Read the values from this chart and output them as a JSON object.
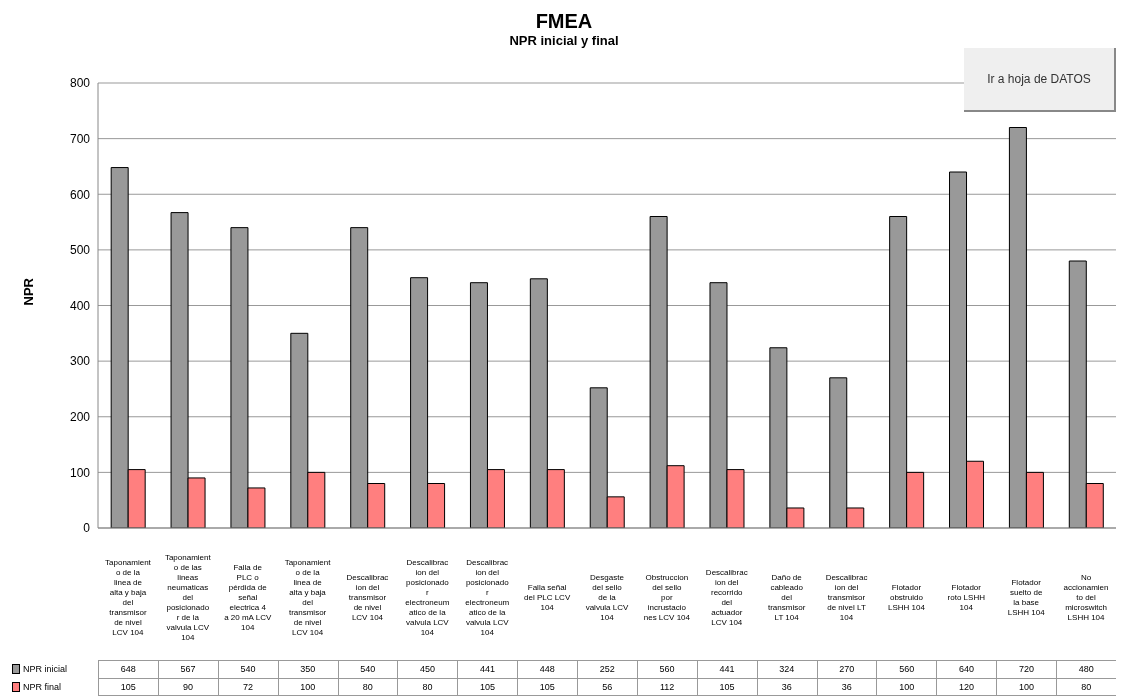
{
  "chart_data": {
    "type": "bar",
    "title": "FMEA",
    "subtitle": "NPR inicial y final",
    "ylabel": "NPR",
    "categories": [
      "Taponamiento de la linea de alta y baja del transmisor de nivel LCV 104",
      "Taponamiento de las lineas neumaticas del posicionador de la valvula LCV 104",
      "Falla de PLC o pérdida de señal electrica 4 a 20 mA LCV 104",
      "Taponamiento de la linea de alta y baja del transmisor de nivel LCV 104",
      "Descalibracion del transmisor de nivel LCV 104",
      "Descalibracion del posicionador electroneumatico de la valvula LCV 104",
      "Descalibracion del posicionador electroneumatico de la valvula LCV 104",
      "Falla señal del PLC LCV 104",
      "Desgaste del sello de la valvula LCV 104",
      "Obstruccion del sello por incrustaciones LCV 104",
      "Descalibracion del recorrido del actuador LCV 104",
      "Daño de cableado del transmisor LT 104",
      "Descalibracion del transmisor de nivel LT 104",
      "Flotador obstruido LSHH 104",
      "Flotador roto LSHH 104",
      "Flotador suelto de la base LSHH 104",
      "No accionamiento del microswitch LSHH 104"
    ],
    "series": [
      {
        "name": "NPR inicial",
        "color": "#999999",
        "values": [
          648,
          567,
          540,
          350,
          540,
          450,
          441,
          448,
          252,
          560,
          441,
          324,
          270,
          560,
          640,
          720,
          480
        ]
      },
      {
        "name": "NPR final",
        "color": "#ff7f7f",
        "values": [
          105,
          90,
          72,
          100,
          80,
          80,
          105,
          105,
          56,
          112,
          105,
          36,
          36,
          100,
          120,
          100,
          80
        ]
      }
    ],
    "ylim": [
      0,
      800
    ],
    "yticks": [
      0,
      100,
      200,
      300,
      400,
      500,
      600,
      700,
      800
    ],
    "grid": "y",
    "legend": "bottom",
    "data_labels": true,
    "annotations": [
      "Ir a hoja de DATOS"
    ]
  }
}
